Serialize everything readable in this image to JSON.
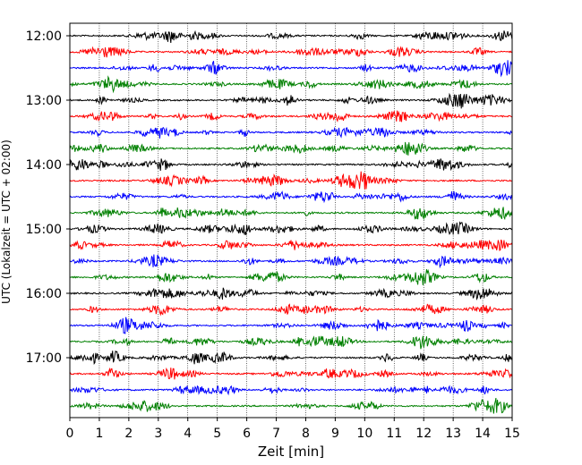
{
  "chart_data": {
    "type": "line",
    "title": "",
    "xlabel": "Zeit  [min]",
    "ylabel": "UTC (Lokalzeit = UTC + 02:00)",
    "xlim": [
      0,
      15
    ],
    "x_ticks": [
      "0",
      "1",
      "2",
      "3",
      "4",
      "5",
      "6",
      "7",
      "8",
      "9",
      "10",
      "11",
      "12",
      "13",
      "14",
      "15"
    ],
    "y_ticks": [
      "12:00",
      "13:00",
      "14:00",
      "15:00",
      "16:00",
      "17:00"
    ],
    "grid": "vertical dotted at each minute",
    "trace_minutes_per_row": 15,
    "row_start_times": [
      "12:00",
      "12:15",
      "12:30",
      "12:45",
      "13:00",
      "13:15",
      "13:30",
      "13:45",
      "14:00",
      "14:15",
      "14:30",
      "14:45",
      "15:00",
      "15:15",
      "15:30",
      "15:45",
      "16:00",
      "16:15",
      "16:30",
      "16:45",
      "17:00",
      "17:15",
      "17:30",
      "17:45"
    ],
    "row_colors": [
      "#000000",
      "#ff0000",
      "#0000ff",
      "#008000"
    ],
    "trace_type": "seismogram (noise-like waveform)"
  }
}
